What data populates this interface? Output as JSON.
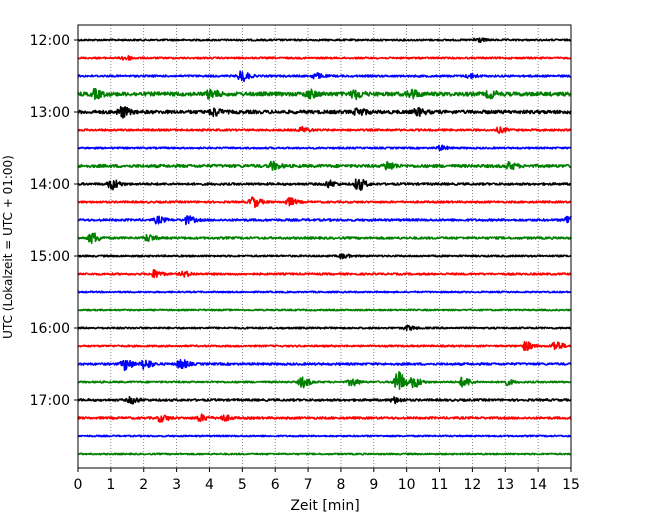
{
  "chart_data": {
    "type": "line",
    "xlabel": "Zeit  [min]",
    "ylabel": "UTC (Lokalzeit = UTC + 01:00)",
    "xlim": [
      0,
      15
    ],
    "x_ticks": [
      0,
      1,
      2,
      3,
      4,
      5,
      6,
      7,
      8,
      9,
      10,
      11,
      12,
      13,
      14,
      15
    ],
    "y_tick_labels": [
      "12:00",
      "13:00",
      "14:00",
      "15:00",
      "16:00",
      "17:00"
    ],
    "y_tick_rows": [
      0,
      4,
      8,
      12,
      16,
      20
    ],
    "grid": {
      "x": true,
      "y": false,
      "style": "dotted"
    },
    "row_interval_min": 15,
    "colors": [
      "#000000",
      "#ff0000",
      "#0000ff",
      "#008000"
    ],
    "series": [
      {
        "start": "12:00",
        "color": "#000000",
        "noise": 0.35,
        "events": [
          {
            "t": 12.1,
            "amp": 0.9
          }
        ]
      },
      {
        "start": "12:15",
        "color": "#ff0000",
        "noise": 0.35,
        "events": [
          {
            "t": 1.4,
            "amp": 0.9
          }
        ]
      },
      {
        "start": "12:30",
        "color": "#0000ff",
        "noise": 0.4,
        "events": [
          {
            "t": 4.95,
            "amp": 2.0
          },
          {
            "t": 7.2,
            "amp": 1.0
          },
          {
            "t": 11.9,
            "amp": 0.8
          }
        ]
      },
      {
        "start": "12:45",
        "color": "#008000",
        "noise": 0.8,
        "events": [
          {
            "t": 0.5,
            "amp": 1.4
          },
          {
            "t": 4.0,
            "amp": 1.6
          },
          {
            "t": 7.0,
            "amp": 1.4
          },
          {
            "t": 8.4,
            "amp": 1.6
          },
          {
            "t": 10.1,
            "amp": 1.6
          },
          {
            "t": 12.5,
            "amp": 1.2
          }
        ]
      },
      {
        "start": "13:00",
        "color": "#000000",
        "noise": 0.7,
        "events": [
          {
            "t": 1.3,
            "amp": 2.0
          },
          {
            "t": 4.1,
            "amp": 1.4
          },
          {
            "t": 8.5,
            "amp": 1.4
          },
          {
            "t": 10.3,
            "amp": 1.2
          }
        ]
      },
      {
        "start": "13:15",
        "color": "#ff0000",
        "noise": 0.4,
        "events": [
          {
            "t": 6.8,
            "amp": 1.0
          },
          {
            "t": 12.8,
            "amp": 0.9
          }
        ]
      },
      {
        "start": "13:30",
        "color": "#0000ff",
        "noise": 0.35,
        "events": [
          {
            "t": 11.0,
            "amp": 0.8
          }
        ]
      },
      {
        "start": "13:45",
        "color": "#008000",
        "noise": 0.6,
        "events": [
          {
            "t": 5.9,
            "amp": 1.4
          },
          {
            "t": 9.4,
            "amp": 1.6
          },
          {
            "t": 13.1,
            "amp": 1.2
          }
        ]
      },
      {
        "start": "14:00",
        "color": "#000000",
        "noise": 0.45,
        "events": [
          {
            "t": 1.0,
            "amp": 2.0
          },
          {
            "t": 7.6,
            "amp": 1.2
          },
          {
            "t": 8.5,
            "amp": 2.4
          }
        ]
      },
      {
        "start": "14:15",
        "color": "#ff0000",
        "noise": 0.4,
        "events": [
          {
            "t": 5.3,
            "amp": 2.0
          },
          {
            "t": 6.4,
            "amp": 1.4
          }
        ]
      },
      {
        "start": "14:30",
        "color": "#0000ff",
        "noise": 0.45,
        "events": [
          {
            "t": 2.4,
            "amp": 1.2
          },
          {
            "t": 3.3,
            "amp": 1.4
          },
          {
            "t": 14.9,
            "amp": 1.8
          }
        ]
      },
      {
        "start": "14:45",
        "color": "#008000",
        "noise": 0.45,
        "events": [
          {
            "t": 0.4,
            "amp": 2.0
          },
          {
            "t": 2.1,
            "amp": 1.2
          }
        ]
      },
      {
        "start": "15:00",
        "color": "#000000",
        "noise": 0.35,
        "events": [
          {
            "t": 8.0,
            "amp": 0.8
          }
        ]
      },
      {
        "start": "15:15",
        "color": "#ff0000",
        "noise": 0.4,
        "events": [
          {
            "t": 2.3,
            "amp": 1.4
          },
          {
            "t": 3.2,
            "amp": 0.9
          }
        ]
      },
      {
        "start": "15:30",
        "color": "#0000ff",
        "noise": 0.3,
        "events": []
      },
      {
        "start": "15:45",
        "color": "#008000",
        "noise": 0.3,
        "events": []
      },
      {
        "start": "16:00",
        "color": "#000000",
        "noise": 0.35,
        "events": [
          {
            "t": 10.0,
            "amp": 0.8
          }
        ]
      },
      {
        "start": "16:15",
        "color": "#ff0000",
        "noise": 0.35,
        "events": [
          {
            "t": 13.6,
            "amp": 1.6
          },
          {
            "t": 14.5,
            "amp": 1.8
          }
        ]
      },
      {
        "start": "16:30",
        "color": "#0000ff",
        "noise": 0.45,
        "events": [
          {
            "t": 1.4,
            "amp": 2.2
          },
          {
            "t": 2.0,
            "amp": 1.8
          },
          {
            "t": 3.1,
            "amp": 1.8
          }
        ]
      },
      {
        "start": "16:45",
        "color": "#008000",
        "noise": 0.35,
        "events": [
          {
            "t": 6.8,
            "amp": 2.0
          },
          {
            "t": 8.3,
            "amp": 1.4
          },
          {
            "t": 9.7,
            "amp": 4.4
          },
          {
            "t": 10.2,
            "amp": 2.0
          },
          {
            "t": 11.7,
            "amp": 1.8
          },
          {
            "t": 13.0,
            "amp": 1.0
          }
        ]
      },
      {
        "start": "17:00",
        "color": "#000000",
        "noise": 0.45,
        "events": [
          {
            "t": 1.6,
            "amp": 1.2
          },
          {
            "t": 9.6,
            "amp": 1.0
          }
        ]
      },
      {
        "start": "17:15",
        "color": "#ff0000",
        "noise": 0.45,
        "events": [
          {
            "t": 2.5,
            "amp": 1.2
          },
          {
            "t": 3.7,
            "amp": 1.2
          },
          {
            "t": 4.4,
            "amp": 1.0
          }
        ]
      },
      {
        "start": "17:30",
        "color": "#0000ff",
        "noise": 0.3,
        "events": []
      },
      {
        "start": "17:45",
        "color": "#008000",
        "noise": 0.3,
        "events": []
      }
    ]
  }
}
